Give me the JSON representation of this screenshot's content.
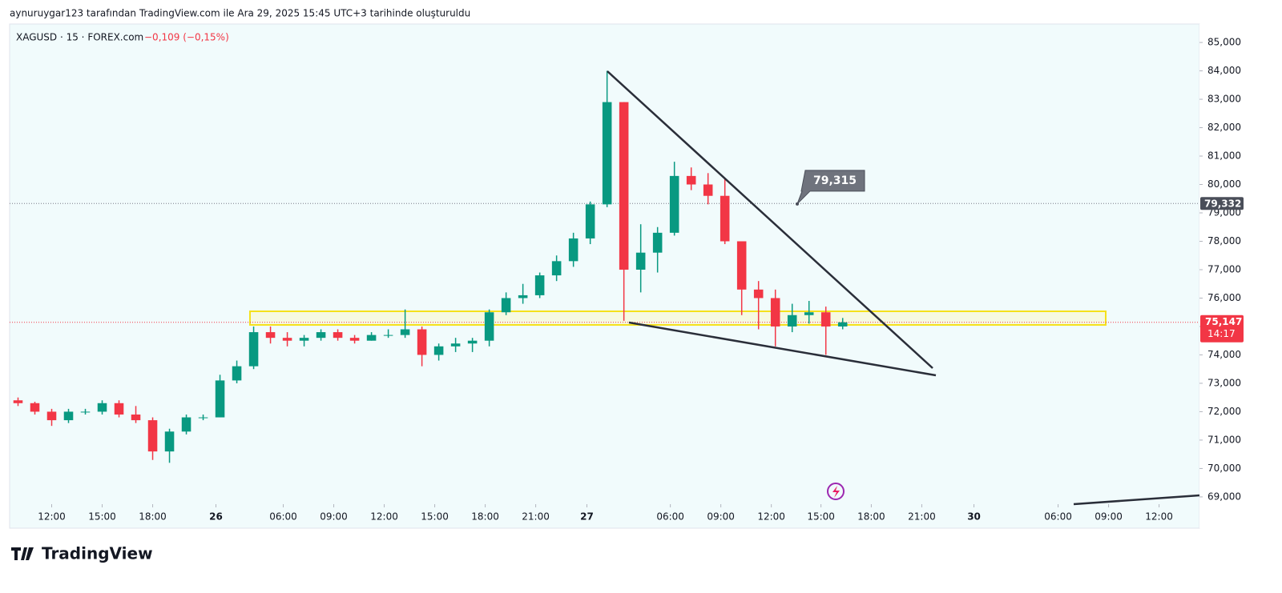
{
  "header": "aynuruygar123 tarafından TradingView.com ile Ara 29, 2025 15:45 UTC+3 tarihinde oluşturuldu",
  "brand": "TradingView",
  "chart_data": {
    "type": "candlestick",
    "symbol": "XAGUSD · 15 · FOREX.com",
    "change": "−0,109 (−0,15%)",
    "up_color": "#089981",
    "down_color": "#f23645",
    "x": [
      -2,
      -1,
      0,
      1,
      2,
      3,
      4,
      5,
      6,
      7,
      8,
      9,
      10,
      11,
      12,
      13,
      14,
      15,
      16,
      17,
      18,
      19,
      20,
      21,
      22,
      23,
      24,
      25,
      26,
      27,
      28,
      29,
      30,
      31,
      32,
      33,
      34,
      35,
      36,
      37,
      38,
      39,
      40,
      41,
      42,
      43,
      44,
      45,
      46,
      47
    ],
    "open": [
      72.4,
      72.3,
      72.0,
      71.7,
      72.0,
      72.0,
      72.3,
      71.9,
      71.7,
      70.6,
      71.3,
      71.8,
      71.8,
      73.1,
      73.6,
      74.8,
      74.6,
      74.5,
      74.6,
      74.8,
      74.6,
      74.5,
      74.7,
      74.7,
      74.9,
      74.0,
      74.3,
      74.4,
      74.5,
      75.5,
      76.0,
      76.1,
      76.8,
      77.3,
      78.1,
      79.3,
      82.9,
      77.0,
      77.6,
      78.3,
      80.3,
      80.0,
      79.6,
      78.0,
      76.3,
      76.0,
      75.0,
      75.4,
      75.5,
      75.0
    ],
    "high": [
      72.5,
      72.35,
      72.1,
      72.1,
      72.1,
      72.4,
      72.4,
      72.2,
      71.8,
      71.4,
      71.9,
      71.9,
      73.3,
      73.8,
      75.0,
      75.0,
      74.8,
      74.7,
      74.9,
      74.9,
      74.7,
      74.8,
      74.9,
      75.6,
      75.0,
      74.4,
      74.6,
      74.6,
      75.6,
      76.2,
      76.5,
      76.9,
      77.5,
      78.3,
      79.4,
      84.0,
      82.9,
      78.6,
      78.5,
      80.8,
      80.6,
      80.4,
      80.2,
      78.0,
      76.6,
      76.3,
      75.8,
      75.9,
      75.7,
      75.3
    ],
    "low": [
      72.2,
      71.9,
      71.5,
      71.6,
      71.9,
      71.9,
      71.8,
      71.6,
      70.3,
      70.2,
      71.2,
      71.7,
      71.8,
      73.0,
      73.5,
      74.4,
      74.3,
      74.3,
      74.5,
      74.5,
      74.4,
      74.5,
      74.6,
      74.6,
      73.6,
      73.8,
      74.1,
      74.1,
      74.3,
      75.4,
      75.8,
      76.0,
      76.6,
      77.1,
      77.9,
      79.2,
      75.2,
      76.2,
      76.9,
      78.2,
      79.8,
      79.3,
      77.9,
      75.4,
      74.9,
      74.3,
      74.8,
      75.1,
      74.0,
      74.9
    ],
    "close": [
      72.3,
      72.0,
      71.7,
      72.0,
      72.0,
      72.3,
      71.9,
      71.7,
      70.6,
      71.3,
      71.8,
      71.8,
      73.1,
      73.6,
      74.8,
      74.6,
      74.5,
      74.6,
      74.8,
      74.6,
      74.5,
      74.7,
      74.7,
      74.9,
      74.0,
      74.3,
      74.4,
      74.5,
      75.5,
      76.0,
      76.1,
      76.8,
      77.3,
      78.1,
      79.3,
      82.9,
      77.0,
      77.6,
      78.3,
      80.3,
      80.0,
      79.6,
      78.0,
      76.3,
      76.0,
      75.0,
      75.4,
      75.5,
      75.0,
      75.147
    ],
    "xlim": [
      -2.5,
      68.2
    ],
    "xticks": [
      {
        "value": 0,
        "label": "12:00"
      },
      {
        "value": 3,
        "label": "15:00"
      },
      {
        "value": 6,
        "label": "18:00"
      },
      {
        "value": 9.76,
        "label": "26"
      },
      {
        "value": 13.76,
        "label": "06:00"
      },
      {
        "value": 16.76,
        "label": "09:00"
      },
      {
        "value": 19.76,
        "label": "12:00"
      },
      {
        "value": 22.76,
        "label": "15:00"
      },
      {
        "value": 25.76,
        "label": "18:00"
      },
      {
        "value": 28.76,
        "label": "21:00"
      },
      {
        "value": 31.8,
        "label": "27"
      },
      {
        "value": 36.76,
        "label": "06:00"
      },
      {
        "value": 39.76,
        "label": "09:00"
      },
      {
        "value": 42.76,
        "label": "12:00"
      },
      {
        "value": 45.71,
        "label": "15:00"
      },
      {
        "value": 48.7,
        "label": "18:00"
      },
      {
        "value": 51.7,
        "label": "21:00"
      },
      {
        "value": 54.8,
        "label": "30"
      },
      {
        "value": 59.8,
        "label": "06:00"
      },
      {
        "value": 62.8,
        "label": "09:00"
      },
      {
        "value": 65.8,
        "label": "12:00"
      }
    ],
    "ylim": [
      68.8,
      85.65
    ],
    "yticks": [
      {
        "value": 69,
        "label": "69,000"
      },
      {
        "value": 70,
        "label": "70,000"
      },
      {
        "value": 71,
        "label": "71,000"
      },
      {
        "value": 72,
        "label": "72,000"
      },
      {
        "value": 73,
        "label": "73,000"
      },
      {
        "value": 74,
        "label": "74,000"
      },
      {
        "value": 75,
        "label": "75,000"
      },
      {
        "value": 76,
        "label": "76,000"
      },
      {
        "value": 77,
        "label": "77,000"
      },
      {
        "value": 78,
        "label": "78,000"
      },
      {
        "value": 79,
        "label": "79,000"
      },
      {
        "value": 80,
        "label": "80,000"
      },
      {
        "value": 81,
        "label": "81,000"
      },
      {
        "value": 82,
        "label": "82,000"
      },
      {
        "value": 83,
        "label": "83,000"
      },
      {
        "value": 84,
        "label": "84,000"
      },
      {
        "value": 85,
        "label": "85,000"
      }
    ],
    "price_line": {
      "value": 79.332,
      "label": "79,332"
    },
    "last_price": {
      "value": 75.147,
      "label": "75,147",
      "countdown": "14:17"
    },
    "callout": {
      "value": 79.315,
      "label": "79,315"
    }
  }
}
